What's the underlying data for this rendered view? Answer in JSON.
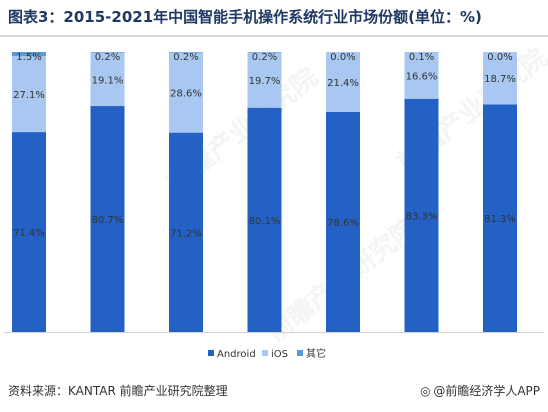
{
  "title": "图表3：2015-2021年中国智能手机操作系统行业市场份额(单位：%)",
  "source": "资料来源：KANTAR 前瞻产业研究院整理",
  "brand": "@前瞻经济学人APP",
  "watermark": "前瞻产业研究院",
  "colors": {
    "android": "#2361c4",
    "ios": "#a9c8f1",
    "other": "#5b9bd5"
  },
  "chart_data": {
    "type": "bar",
    "stacked": true,
    "categories": [
      "",
      "",
      "",
      "",
      "",
      "",
      ""
    ],
    "ylim": [
      0,
      100
    ],
    "series": [
      {
        "name": "Android",
        "values": [
          71.4,
          80.7,
          71.2,
          80.1,
          78.6,
          83.3,
          81.3
        ],
        "labels": [
          "71.4%",
          "80.7%",
          "71.2%",
          "80.1%",
          "78.6%",
          "83.3%",
          "81.3%"
        ]
      },
      {
        "name": "iOS",
        "values": [
          27.1,
          19.1,
          28.6,
          19.7,
          21.4,
          16.6,
          18.7
        ],
        "labels": [
          "27.1%",
          "19.1%",
          "28.6%",
          "19.7%",
          "21.4%",
          "16.6%",
          "18.7%"
        ]
      },
      {
        "name": "其它",
        "values": [
          1.5,
          0.2,
          0.2,
          0.2,
          0.0,
          0.1,
          0.0
        ],
        "labels": [
          "1.5%",
          "0.2%",
          "0.2%",
          "0.2%",
          "0.0%",
          "0.1%",
          "0.0%"
        ]
      }
    ],
    "legend": "bottom-center",
    "grid": false
  }
}
